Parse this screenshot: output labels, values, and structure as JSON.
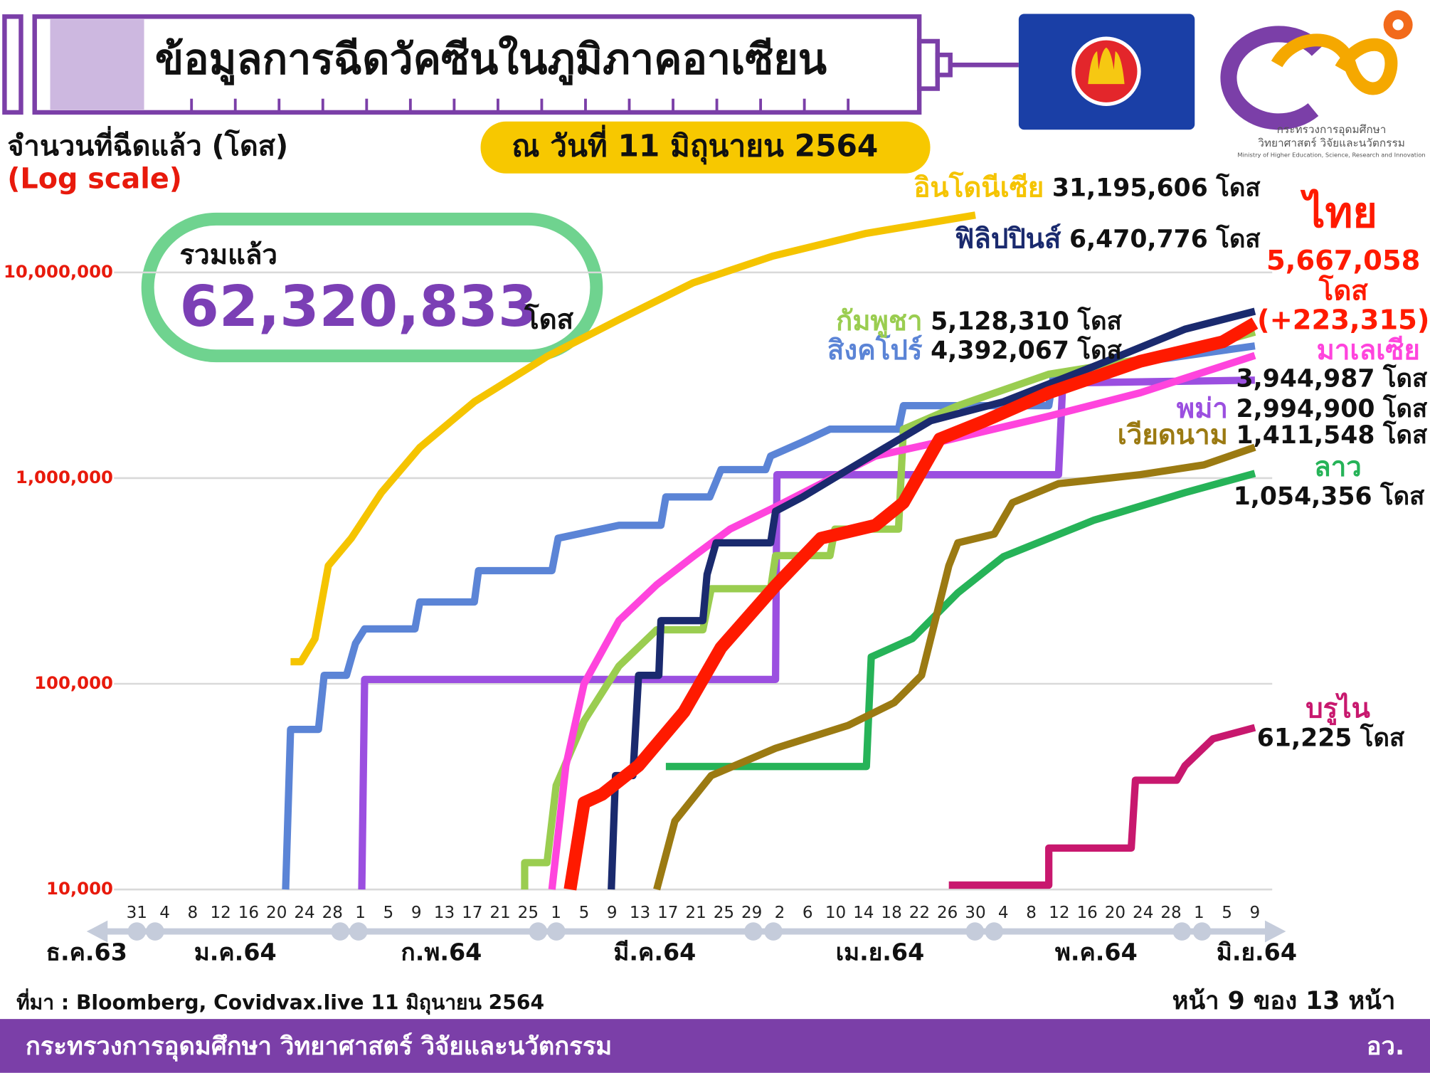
{
  "chart_data": {
    "type": "line",
    "title": "ข้อมูลการฉีดวัคซีนในภูมิภาคอาเซียน",
    "ylabel": "จำนวนที่ฉีดแล้ว (โดส)",
    "scale_note": "(Log scale)",
    "date_note": "ณ วันที่ 11 มิถุนายน 2564",
    "summary": {
      "label": "รวมแล้ว",
      "value": 62320833,
      "value_label": "62,320,833"
    },
    "unit": "โดส",
    "source": "ที่มา : Bloomberg, Covidvax.live 11 มิถุนายน 2564",
    "page_note": "หน้า 9 ของ 13 หน้า",
    "yscale": "log",
    "grid": true,
    "ylim": [
      10000,
      40000000
    ],
    "yticks": [
      {
        "value": 10000,
        "label": "10,000"
      },
      {
        "value": 100000,
        "label": "100,000"
      },
      {
        "value": 1000000,
        "label": "1,000,000"
      },
      {
        "value": 10000000,
        "label": "10,000,000"
      }
    ],
    "xlim": [
      0,
      160
    ],
    "xticks": [
      {
        "value": 0,
        "label": "31"
      },
      4,
      8,
      12,
      16,
      20,
      24,
      28,
      {
        "value": 32,
        "label": "1"
      },
      {
        "value": 36,
        "label": "5"
      },
      {
        "value": 40,
        "label": "9"
      },
      {
        "value": 44,
        "label": "13"
      },
      {
        "value": 48,
        "label": "17"
      },
      {
        "value": 52,
        "label": "21"
      },
      {
        "value": 56,
        "label": "25"
      },
      {
        "value": 60,
        "label": "1"
      },
      {
        "value": 64,
        "label": "5"
      },
      {
        "value": 68,
        "label": "9"
      },
      {
        "value": 72,
        "label": "13"
      },
      {
        "value": 76,
        "label": "17"
      },
      {
        "value": 80,
        "label": "21"
      },
      {
        "value": 84,
        "label": "25"
      },
      {
        "value": 88,
        "label": "29"
      },
      {
        "value": 92,
        "label": "2"
      },
      {
        "value": 96,
        "label": "6"
      },
      {
        "value": 100,
        "label": "10"
      },
      {
        "value": 104,
        "label": "14"
      },
      {
        "value": 108,
        "label": "18"
      },
      {
        "value": 112,
        "label": "22"
      },
      {
        "value": 116,
        "label": "26"
      },
      {
        "value": 120,
        "label": "30"
      },
      {
        "value": 124,
        "label": "4"
      },
      {
        "value": 128,
        "label": "8"
      },
      {
        "value": 132,
        "label": "12"
      },
      {
        "value": 136,
        "label": "16"
      },
      {
        "value": 140,
        "label": "20"
      },
      {
        "value": 144,
        "label": "24"
      },
      {
        "value": 148,
        "label": "28"
      },
      {
        "value": 152,
        "label": "1"
      },
      {
        "value": 156,
        "label": "5"
      },
      {
        "value": 160,
        "label": "9"
      }
    ],
    "x_groups": [
      "ธ.ค.63",
      "ม.ค.64",
      "ก.พ.64",
      "มี.ค.64",
      "เม.ย.64",
      "พ.ค.64",
      "มิ.ย.64"
    ],
    "series": [
      {
        "name": "สิงคโปร์",
        "color": "#5b84d6",
        "x": [
          21.3,
          22,
          26,
          26.8,
          30,
          31.3,
          32.6,
          39.8,
          40.5,
          48.3,
          48.9,
          59.4,
          60.3,
          69,
          75,
          75.7,
          82,
          83.6,
          90,
          90.7,
          95.3,
          99.2,
          109,
          109.7,
          130.5,
          131.2,
          160
        ],
        "values": [
          10000,
          60000,
          60000,
          110000,
          110000,
          157000,
          185000,
          185000,
          250000,
          250000,
          355000,
          355000,
          510000,
          590000,
          590000,
          810000,
          810000,
          1100000,
          1100000,
          1280000,
          1500000,
          1730000,
          1730000,
          2250000,
          2250000,
          3200000,
          4392067
        ],
        "total": 4392067,
        "total_label": "4,392,067"
      },
      {
        "name": "พม่า",
        "color": "#9b4fe0",
        "x": [
          32.2,
          32.6,
          91.4,
          91.6,
          131.9,
          132.5,
          160
        ],
        "values": [
          10000,
          105000,
          105000,
          1040000,
          1040000,
          2900000,
          2994900
        ],
        "total": 2994900,
        "total_label": "2,994,900"
      },
      {
        "name": "อินโดนีเซีย",
        "color": "#f5c400",
        "x": [
          22,
          23.5,
          25.5,
          27.4,
          30.7,
          35,
          40.5,
          48.3,
          58.7,
          69,
          79.6,
          91,
          104.4,
          120
        ],
        "values": [
          128000,
          128000,
          166000,
          375000,
          510000,
          850000,
          1410000,
          2350000,
          3900000,
          5900000,
          8900000,
          12000000,
          15500000,
          19000000
        ],
        "total": 31195606,
        "total_label": "31,195,606"
      },
      {
        "name": "กัมพูชา",
        "color": "#9acd50",
        "x": [
          55.5,
          55.5,
          58.7,
          60,
          64,
          69,
          74.4,
          81,
          82.2,
          90.7,
          91.4,
          99.2,
          99.9,
          109,
          109.7,
          117.5,
          130.5,
          150,
          160
        ],
        "values": [
          10000,
          13500,
          13500,
          32000,
          66000,
          122000,
          183000,
          183000,
          290000,
          290000,
          420000,
          420000,
          565000,
          565000,
          1730000,
          2250000,
          3200000,
          4100000,
          5128310
        ],
        "total": 5128310,
        "total_label": "5,128,310"
      },
      {
        "name": "ลาว",
        "color": "#26b358",
        "x": [
          75.7,
          104.4,
          105.1,
          111,
          117.5,
          124,
          137,
          150,
          160
        ],
        "values": [
          39600,
          39600,
          135000,
          166000,
          277000,
          415000,
          625000,
          850000,
          1054356
        ],
        "total": 1054356,
        "total_label": "1,054,356"
      },
      {
        "name": "เวียดนาม",
        "color": "#9b7a12",
        "x": [
          74.4,
          77,
          82.2,
          91.4,
          101.8,
          108.4,
          112.3,
          116.2,
          117.5,
          122.7,
          125.3,
          131.9,
          143.6,
          152.7,
          160
        ],
        "values": [
          10000,
          21500,
          35800,
          48600,
          62800,
          81000,
          110000,
          375000,
          485000,
          535000,
          760000,
          940000,
          1040000,
          1160000,
          1411548
        ],
        "total": 1411548,
        "total_label": "1,411,548"
      },
      {
        "name": "บรูไน",
        "color": "#c8186e",
        "x": [
          116.2,
          130.5,
          130.5,
          142.3,
          142.9,
          148.8,
          150,
          154,
          160
        ],
        "values": [
          10500,
          10500,
          15900,
          15900,
          34000,
          34000,
          40000,
          54000,
          61225
        ],
        "total": 61225,
        "total_label": "61,225"
      },
      {
        "name": "มาเลเซีย",
        "color": "#ff44dd",
        "x": [
          59.4,
          61.4,
          64,
          69,
          74.4,
          79.6,
          84.9,
          91.4,
          97.9,
          105.7,
          114.9,
          130.5,
          143.6,
          160
        ],
        "values": [
          10000,
          40000,
          100000,
          203000,
          303000,
          415000,
          565000,
          725000,
          940000,
          1280000,
          1500000,
          2000000,
          2600000,
          3944987
        ],
        "total": 3944987,
        "total_label": "3,944,987"
      },
      {
        "name": "ฟิลิปปินส์",
        "color": "#1a2a6e",
        "x": [
          67.9,
          68.5,
          71,
          71.8,
          74.7,
          75,
          81,
          81.6,
          82.9,
          90.7,
          91.4,
          95.3,
          101.8,
          107,
          113.6,
          124,
          137,
          150,
          160
        ],
        "values": [
          10000,
          35800,
          35800,
          110000,
          110000,
          203000,
          203000,
          340000,
          485000,
          485000,
          690000,
          810000,
          1100000,
          1400000,
          1900000,
          2350000,
          3500000,
          5300000,
          6470776
        ],
        "total": 6470776,
        "total_label": "6,470,776"
      },
      {
        "name": "ไทย",
        "color": "#ff1a00",
        "x": [
          62,
          64,
          66.6,
          71.8,
          78.3,
          83.6,
          91.4,
          97.9,
          105.7,
          109.7,
          114.9,
          121.4,
          130.5,
          143.6,
          155.4,
          160
        ],
        "values": [
          10000,
          26400,
          29000,
          40000,
          73000,
          150000,
          300000,
          510000,
          590000,
          760000,
          1550000,
          1900000,
          2600000,
          3700000,
          4600000,
          5667058
        ],
        "total": 5667058,
        "total_label": "5,667,058",
        "daily_change": 223315,
        "daily_change_label": "(+223,315)"
      }
    ]
  },
  "logo": {
    "line1": "กระทรวงการอุดมศึกษา",
    "line2": "วิทยาศาสตร์ วิจัยและนวัตกรรม",
    "line3": "Ministry of Higher Education, Science, Research and Innovation"
  },
  "footer": {
    "org": "กระทรวงการอุดมศึกษา วิทยาศาสตร์ วิจัยและนวัตกรรม",
    "short": "อว."
  }
}
